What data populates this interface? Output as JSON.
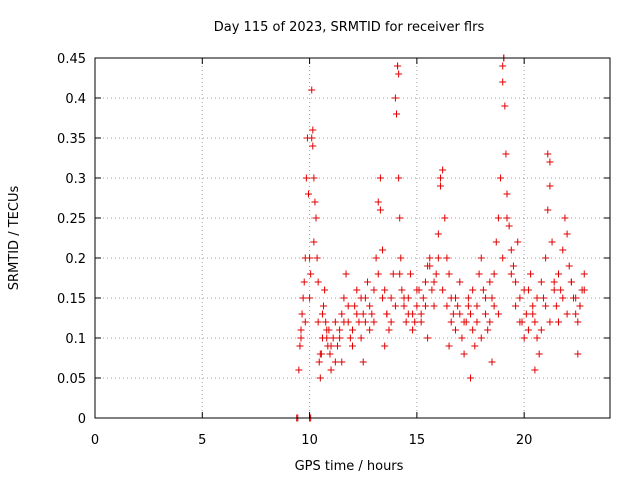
{
  "chart_data": {
    "type": "scatter",
    "title": "Day 115 of 2023, SRMTID for receiver flrs",
    "xlabel": "GPS time / hours",
    "ylabel": "SRMTID / TECUs",
    "xlim": [
      0,
      24
    ],
    "ylim": [
      0,
      0.45
    ],
    "xticks": [
      0,
      5,
      10,
      15,
      20
    ],
    "xtick_labels": [
      "0",
      "5",
      "10",
      "15",
      "20"
    ],
    "yticks": [
      0,
      0.05,
      0.1,
      0.15,
      0.2,
      0.25,
      0.3,
      0.35,
      0.4,
      0.45
    ],
    "ytick_labels": [
      "0",
      "0.05",
      "0.1",
      "0.15",
      "0.2",
      "0.25",
      "0.3",
      "0.35",
      "0.4",
      "0.45"
    ],
    "grid": true,
    "marker": "+",
    "series_color": "#e00000",
    "series": [
      {
        "name": "SRMTID",
        "x": [
          9.4,
          9.45,
          10.0,
          10.05,
          9.5,
          9.55,
          9.6,
          9.65,
          9.7,
          9.75,
          9.8,
          9.85,
          9.9,
          9.95,
          10.0,
          10.05,
          10.1,
          10.15,
          10.2,
          10.25,
          10.3,
          10.35,
          10.4,
          10.45,
          10.5,
          10.55,
          10.6,
          10.65,
          10.7,
          10.75,
          10.8,
          10.85,
          10.9,
          10.95,
          11.0,
          11.1,
          11.2,
          11.3,
          11.4,
          11.5,
          11.6,
          11.7,
          11.8,
          11.9,
          12.0,
          12.1,
          12.2,
          12.3,
          12.4,
          12.5,
          12.6,
          12.7,
          12.8,
          12.9,
          13.0,
          13.1,
          13.2,
          13.3,
          13.4,
          13.5,
          13.6,
          13.7,
          13.8,
          13.9,
          14.0,
          14.05,
          14.1,
          14.15,
          14.2,
          14.25,
          14.3,
          14.4,
          14.5,
          14.6,
          14.7,
          14.8,
          14.9,
          15.0,
          15.1,
          15.2,
          15.3,
          15.4,
          15.5,
          15.6,
          15.7,
          15.8,
          15.9,
          16.0,
          16.1,
          16.2,
          16.3,
          16.4,
          16.5,
          16.6,
          16.7,
          16.8,
          16.9,
          17.0,
          17.1,
          17.2,
          17.3,
          17.4,
          17.5,
          17.6,
          17.7,
          17.8,
          17.9,
          18.0,
          18.1,
          18.2,
          18.3,
          18.4,
          18.5,
          18.6,
          18.7,
          18.8,
          18.9,
          19.0,
          19.05,
          19.1,
          19.15,
          19.2,
          19.3,
          19.4,
          19.5,
          19.6,
          19.7,
          19.8,
          19.9,
          20.0,
          20.1,
          20.2,
          20.3,
          20.4,
          20.5,
          20.6,
          20.7,
          20.8,
          20.9,
          21.0,
          21.1,
          21.2,
          21.3,
          21.4,
          21.5,
          21.6,
          21.7,
          21.8,
          21.9,
          22.0,
          22.1,
          22.2,
          22.3,
          22.4,
          22.5,
          22.6,
          22.7,
          22.8,
          9.6,
          9.8,
          10.0,
          10.2,
          10.4,
          10.6,
          10.8,
          11.0,
          11.2,
          11.4,
          11.6,
          11.8,
          12.0,
          12.2,
          12.4,
          12.6,
          12.8,
          13.0,
          13.2,
          13.4,
          13.6,
          13.8,
          14.0,
          14.2,
          14.4,
          14.6,
          14.8,
          15.0,
          15.2,
          15.4,
          15.6,
          15.8,
          16.0,
          16.2,
          16.4,
          16.6,
          16.8,
          17.0,
          17.2,
          17.4,
          17.6,
          17.8,
          18.0,
          18.2,
          18.4,
          18.6,
          18.8,
          19.0,
          19.2,
          19.4,
          19.6,
          19.8,
          20.0,
          20.2,
          20.4,
          20.6,
          20.8,
          21.0,
          21.2,
          21.4,
          21.6,
          21.8,
          22.0,
          22.2,
          22.4,
          22.6,
          22.8,
          10.1,
          10.15,
          14.1,
          14.15,
          19.0,
          19.05,
          13.3,
          16.1,
          21.1,
          21.2,
          10.5,
          11.5,
          12.5,
          13.5,
          15.5,
          16.5,
          17.5,
          18.5,
          20.5,
          22.5
        ],
        "y": [
          0.0,
          0.0,
          0.0,
          0.0,
          0.06,
          0.09,
          0.11,
          0.13,
          0.15,
          0.17,
          0.2,
          0.3,
          0.35,
          0.28,
          0.2,
          0.18,
          0.41,
          0.36,
          0.3,
          0.27,
          0.25,
          0.2,
          0.12,
          0.07,
          0.05,
          0.08,
          0.1,
          0.14,
          0.16,
          0.12,
          0.1,
          0.09,
          0.11,
          0.08,
          0.06,
          0.1,
          0.12,
          0.09,
          0.11,
          0.13,
          0.15,
          0.18,
          0.12,
          0.1,
          0.09,
          0.14,
          0.16,
          0.12,
          0.1,
          0.13,
          0.15,
          0.17,
          0.11,
          0.13,
          0.12,
          0.2,
          0.27,
          0.3,
          0.21,
          0.16,
          0.13,
          0.11,
          0.15,
          0.18,
          0.4,
          0.38,
          0.44,
          0.3,
          0.25,
          0.2,
          0.16,
          0.14,
          0.12,
          0.15,
          0.18,
          0.13,
          0.12,
          0.14,
          0.16,
          0.13,
          0.15,
          0.17,
          0.19,
          0.2,
          0.16,
          0.14,
          0.18,
          0.23,
          0.29,
          0.31,
          0.25,
          0.2,
          0.18,
          0.15,
          0.13,
          0.11,
          0.14,
          0.17,
          0.1,
          0.08,
          0.12,
          0.15,
          0.13,
          0.11,
          0.09,
          0.14,
          0.18,
          0.2,
          0.16,
          0.13,
          0.11,
          0.12,
          0.15,
          0.18,
          0.22,
          0.25,
          0.3,
          0.42,
          0.45,
          0.39,
          0.33,
          0.28,
          0.24,
          0.21,
          0.19,
          0.17,
          0.22,
          0.15,
          0.12,
          0.1,
          0.13,
          0.16,
          0.18,
          0.14,
          0.12,
          0.1,
          0.08,
          0.11,
          0.15,
          0.2,
          0.26,
          0.32,
          0.22,
          0.17,
          0.14,
          0.12,
          0.16,
          0.21,
          0.25,
          0.23,
          0.19,
          0.17,
          0.15,
          0.13,
          0.12,
          0.14,
          0.16,
          0.18,
          0.1,
          0.12,
          0.15,
          0.22,
          0.17,
          0.13,
          0.11,
          0.09,
          0.07,
          0.1,
          0.12,
          0.14,
          0.11,
          0.13,
          0.15,
          0.12,
          0.14,
          0.16,
          0.18,
          0.15,
          0.13,
          0.12,
          0.14,
          0.18,
          0.15,
          0.13,
          0.11,
          0.16,
          0.12,
          0.14,
          0.19,
          0.17,
          0.2,
          0.16,
          0.14,
          0.12,
          0.15,
          0.13,
          0.12,
          0.14,
          0.16,
          0.12,
          0.1,
          0.15,
          0.17,
          0.14,
          0.13,
          0.2,
          0.25,
          0.18,
          0.14,
          0.12,
          0.16,
          0.11,
          0.13,
          0.15,
          0.17,
          0.14,
          0.12,
          0.16,
          0.18,
          0.15,
          0.13,
          0.17,
          0.15,
          0.14,
          0.16,
          0.35,
          0.34,
          0.44,
          0.43,
          0.44,
          0.45,
          0.26,
          0.3,
          0.33,
          0.29,
          0.08,
          0.07,
          0.07,
          0.09,
          0.1,
          0.09,
          0.05,
          0.07,
          0.06,
          0.08
        ]
      }
    ]
  }
}
